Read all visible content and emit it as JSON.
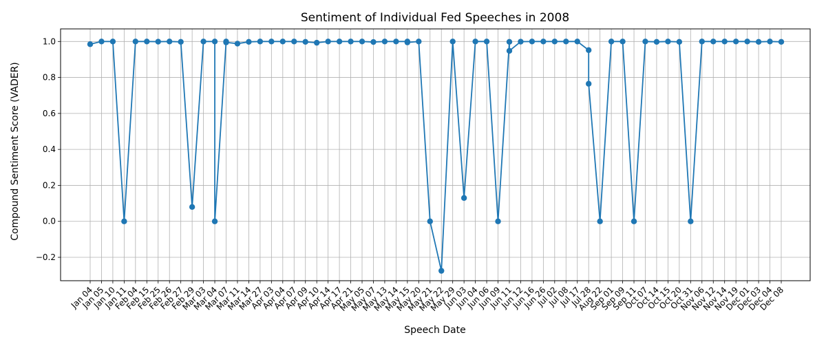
{
  "chart_data": {
    "type": "line",
    "title": "Sentiment of Individual Fed Speeches in 2008",
    "xlabel": "Speech Date",
    "ylabel": "Compound Sentiment Score (VADER)",
    "ylim": [
      -0.33,
      1.07
    ],
    "yticks": [
      -0.2,
      0.0,
      0.2,
      0.4,
      0.6,
      0.8,
      1.0
    ],
    "ytick_labels": [
      "−0.2",
      "0.0",
      "0.2",
      "0.4",
      "0.6",
      "0.8",
      "1.0"
    ],
    "grid": true,
    "marker": "circle",
    "color": "#1f77b4",
    "categories": [
      "Jan 04",
      "Jan 05",
      "Jan 10",
      "Jan 11",
      "Feb 04",
      "Feb 15",
      "Feb 25",
      "Feb 26",
      "Feb 27",
      "Feb 29",
      "Mar 03",
      "Mar 04",
      "Mar 07",
      "Mar 11",
      "Mar 14",
      "Mar 27",
      "Apr 03",
      "Apr 04",
      "Apr 07",
      "Apr 09",
      "Apr 10",
      "Apr 14",
      "Apr 17",
      "Apr 21",
      "May 05",
      "May 07",
      "May 13",
      "May 14",
      "May 15",
      "May 20",
      "May 21",
      "May 22",
      "May 29",
      "Jun 03",
      "Jun 04",
      "Jun 06",
      "Jun 09",
      "Jun 11",
      "Jun 12",
      "Jun 16",
      "Jun 26",
      "Jul 02",
      "Jul 08",
      "Jul 17",
      "Jul 28",
      "Aug 22",
      "Sep 01",
      "Sep 09",
      "Sep 11",
      "Oct 07",
      "Oct 14",
      "Oct 15",
      "Oct 20",
      "Oct 31",
      "Nov 06",
      "Nov 12",
      "Nov 14",
      "Nov 19",
      "Dec 01",
      "Dec 03",
      "Dec 04",
      "Dec 08"
    ],
    "points": [
      {
        "cat": "Jan 04",
        "y": 0.985
      },
      {
        "cat": "Jan 05",
        "y": 1.0
      },
      {
        "cat": "Jan 10",
        "y": 1.0
      },
      {
        "cat": "Jan 11",
        "y": 0.0
      },
      {
        "cat": "Feb 04",
        "y": 1.0
      },
      {
        "cat": "Feb 15",
        "y": 1.0
      },
      {
        "cat": "Feb 25",
        "y": 0.999
      },
      {
        "cat": "Feb 26",
        "y": 1.0
      },
      {
        "cat": "Feb 27",
        "y": 0.998
      },
      {
        "cat": "Feb 29",
        "y": 0.08
      },
      {
        "cat": "Mar 03",
        "y": 1.0
      },
      {
        "cat": "Mar 04",
        "y": 1.0
      },
      {
        "cat": "Mar 04",
        "y": 0.0
      },
      {
        "cat": "Mar 07",
        "y": 1.0
      },
      {
        "cat": "Mar 07",
        "y": 0.995
      },
      {
        "cat": "Mar 11",
        "y": 0.988
      },
      {
        "cat": "Mar 14",
        "y": 0.998
      },
      {
        "cat": "Mar 27",
        "y": 1.0
      },
      {
        "cat": "Apr 03",
        "y": 1.0
      },
      {
        "cat": "Apr 04",
        "y": 1.0
      },
      {
        "cat": "Apr 07",
        "y": 1.0
      },
      {
        "cat": "Apr 09",
        "y": 0.998
      },
      {
        "cat": "Apr 10",
        "y": 0.993
      },
      {
        "cat": "Apr 14",
        "y": 1.0
      },
      {
        "cat": "Apr 17",
        "y": 1.0
      },
      {
        "cat": "Apr 21",
        "y": 1.0
      },
      {
        "cat": "May 05",
        "y": 1.0
      },
      {
        "cat": "May 07",
        "y": 0.997
      },
      {
        "cat": "May 13",
        "y": 1.0
      },
      {
        "cat": "May 14",
        "y": 1.0
      },
      {
        "cat": "May 15",
        "y": 1.0
      },
      {
        "cat": "May 15",
        "y": 0.995
      },
      {
        "cat": "May 20",
        "y": 1.0
      },
      {
        "cat": "May 21",
        "y": 0.0
      },
      {
        "cat": "May 22",
        "y": -0.275
      },
      {
        "cat": "May 29",
        "y": 1.0
      },
      {
        "cat": "Jun 03",
        "y": 0.13
      },
      {
        "cat": "Jun 04",
        "y": 1.0
      },
      {
        "cat": "Jun 06",
        "y": 1.0
      },
      {
        "cat": "Jun 09",
        "y": 0.0
      },
      {
        "cat": "Jun 11",
        "y": 0.998
      },
      {
        "cat": "Jun 11",
        "y": 0.948
      },
      {
        "cat": "Jun 12",
        "y": 0.999
      },
      {
        "cat": "Jun 16",
        "y": 1.0
      },
      {
        "cat": "Jun 26",
        "y": 1.0
      },
      {
        "cat": "Jul 02",
        "y": 1.0
      },
      {
        "cat": "Jul 08",
        "y": 1.0
      },
      {
        "cat": "Jul 17",
        "y": 1.0
      },
      {
        "cat": "Jul 28",
        "y": 0.952
      },
      {
        "cat": "Jul 28",
        "y": 0.765
      },
      {
        "cat": "Aug 22",
        "y": 0.0
      },
      {
        "cat": "Sep 01",
        "y": 1.0
      },
      {
        "cat": "Sep 09",
        "y": 1.0
      },
      {
        "cat": "Sep 11",
        "y": 0.0
      },
      {
        "cat": "Oct 07",
        "y": 1.0
      },
      {
        "cat": "Oct 14",
        "y": 0.998
      },
      {
        "cat": "Oct 15",
        "y": 1.0
      },
      {
        "cat": "Oct 20",
        "y": 0.998
      },
      {
        "cat": "Oct 31",
        "y": 0.0
      },
      {
        "cat": "Nov 06",
        "y": 1.0
      },
      {
        "cat": "Nov 12",
        "y": 1.0
      },
      {
        "cat": "Nov 14",
        "y": 1.0
      },
      {
        "cat": "Nov 19",
        "y": 1.0
      },
      {
        "cat": "Dec 01",
        "y": 1.0
      },
      {
        "cat": "Dec 03",
        "y": 0.998
      },
      {
        "cat": "Dec 04",
        "y": 1.0
      },
      {
        "cat": "Dec 08",
        "y": 0.998
      }
    ]
  }
}
